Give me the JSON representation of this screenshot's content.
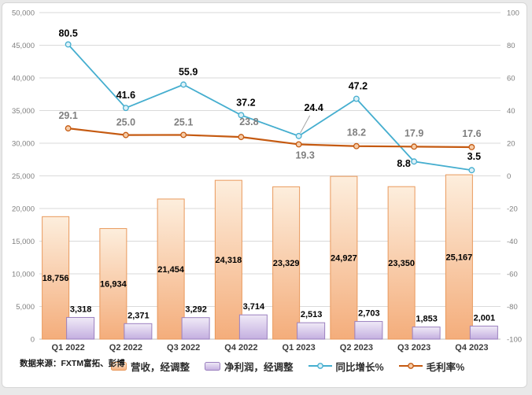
{
  "frame": {
    "background": "#ffffff",
    "border_color": "#d6d6d6",
    "page_background": "#e9e9e9"
  },
  "source_note": "数据来源：FXTM富拓、彭博",
  "chart_data": {
    "type": "combo-bar-line",
    "title": "",
    "categories": [
      "Q1 2022",
      "Q2 2022",
      "Q3 2022",
      "Q4 2022",
      "Q1 2023",
      "Q2 2023",
      "Q3 2023",
      "Q4 2023"
    ],
    "bar_series": [
      {
        "name": "营收，经调整",
        "axis": "left",
        "values": [
          18756,
          16934,
          21454,
          24318,
          23329,
          24927,
          23350,
          25167
        ],
        "fill_top": "#fdeedd",
        "fill_bottom": "#f4ad7b",
        "border": "#e9995c",
        "label_color": "#000000"
      },
      {
        "name": "净利润，经调整",
        "axis": "left",
        "values": [
          3318,
          2371,
          3292,
          3714,
          2513,
          2703,
          1853,
          2001
        ],
        "fill_top": "#f0eaf7",
        "fill_bottom": "#c4afe0",
        "border": "#9b80bf",
        "label_color": "#000000"
      }
    ],
    "line_series": [
      {
        "name": "同比增长%",
        "axis": "right",
        "values": [
          80.5,
          41.6,
          55.9,
          37.2,
          24.4,
          47.2,
          8.8,
          3.5
        ],
        "color": "#45aecf",
        "marker_fill": "#ddf1f8",
        "label_color": "#000000"
      },
      {
        "name": "毛利率%",
        "axis": "right",
        "values": [
          29.1,
          25.0,
          25.1,
          23.8,
          19.3,
          18.2,
          17.9,
          17.6
        ],
        "color": "#c55a11",
        "marker_fill": "#f6cda9",
        "label_color": "#7f7f7f"
      }
    ],
    "left_axis": {
      "min": 0,
      "max": 50000,
      "step": 5000
    },
    "right_axis": {
      "min": -100,
      "max": 100,
      "step": 20
    },
    "gridline_color": "#dadada",
    "axis_line_color": "#bfbfbf",
    "gridlines": true,
    "legend_position": "bottom"
  }
}
